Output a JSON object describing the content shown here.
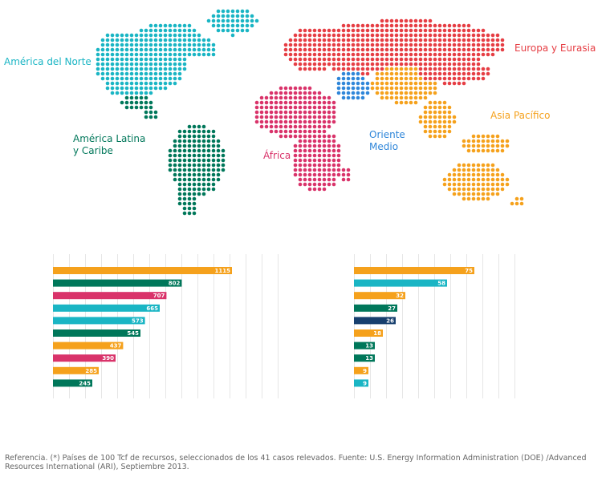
{
  "colors": {
    "north_america": "#1ab5c4",
    "latin_america": "#00775a",
    "europe_eurasia": "#e63e44",
    "africa": "#d9336a",
    "middle_east": "#2f86d9",
    "asia_pacific": "#f5a11c",
    "dark_blue": "#173f6e",
    "grid": "#e6e6e6"
  },
  "regions": {
    "north_america": "América del Norte",
    "latin_america_line1": "América Latina",
    "latin_america_line2": "y Caribe",
    "europe_eurasia": "Europa y Eurasia",
    "asia_pacific": "Asia Pacífico",
    "middle_east_line1": "Oriente",
    "middle_east_line2": "Medio",
    "africa": "África"
  },
  "chart_data": [
    {
      "type": "bar",
      "orientation": "horizontal",
      "values": [
        1115,
        802,
        707,
        665,
        573,
        545,
        437,
        390,
        285,
        245
      ],
      "bar_colors": [
        "#f5a11c",
        "#00775a",
        "#d9336a",
        "#1ab5c4",
        "#1ab5c4",
        "#00775a",
        "#f5a11c",
        "#d9336a",
        "#f5a11c",
        "#00775a"
      ],
      "xlim": [
        0,
        1400
      ],
      "grid": true
    },
    {
      "type": "bar",
      "orientation": "horizontal",
      "values": [
        75,
        58,
        32,
        27,
        26,
        18,
        13,
        13,
        9,
        9
      ],
      "bar_colors": [
        "#f5a11c",
        "#1ab5c4",
        "#f5a11c",
        "#00775a",
        "#173f6e",
        "#f5a11c",
        "#00775a",
        "#00775a",
        "#f5a11c",
        "#1ab5c4"
      ],
      "xlim": [
        0,
        100
      ],
      "grid": true
    }
  ],
  "footnote": "Referencia. (*) Países de 100 Tcf de recursos, seleccionados de los 41 casos relevados. Fuente: U.S. Energy Information Administration (DOE) /Advanced Resources International (ARI), Septiembre 2013."
}
